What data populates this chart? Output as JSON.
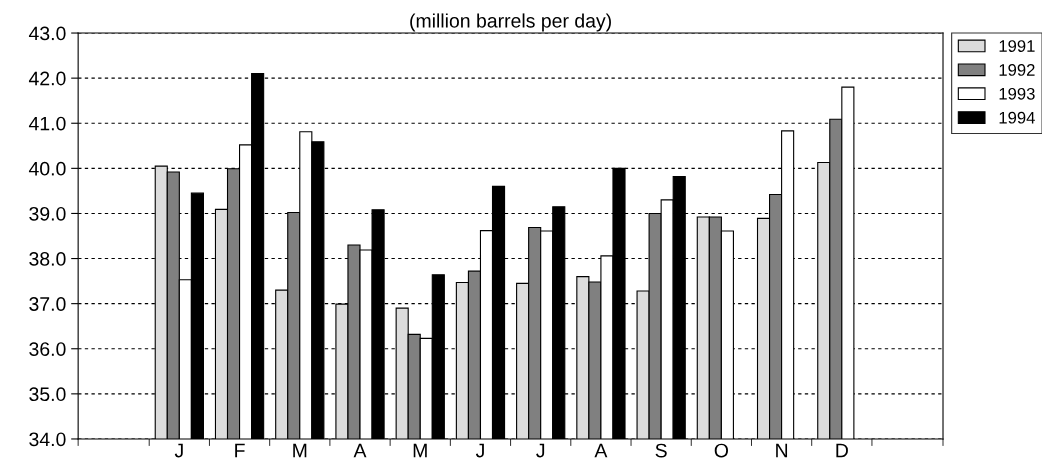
{
  "chart_data": {
    "type": "bar",
    "title": "(million barrels per day)",
    "categories": [
      "J",
      "F",
      "M",
      "A",
      "M",
      "J",
      "J",
      "A",
      "S",
      "O",
      "N",
      "D"
    ],
    "series": [
      {
        "name": "1991",
        "color": "#dcdcdc",
        "values": [
          40.05,
          39.09,
          37.3,
          36.99,
          36.9,
          37.47,
          37.45,
          37.6,
          37.28,
          38.92,
          38.89,
          40.13
        ]
      },
      {
        "name": "1992",
        "color": "#808080",
        "values": [
          39.92,
          39.99,
          39.02,
          38.3,
          36.32,
          37.72,
          38.69,
          37.48,
          39.0,
          38.92,
          39.42,
          41.09
        ]
      },
      {
        "name": "1993",
        "color": "#ffffff",
        "values": [
          37.53,
          40.52,
          40.81,
          38.19,
          36.23,
          38.62,
          38.61,
          38.06,
          39.3,
          38.61,
          40.83,
          41.8
        ]
      },
      {
        "name": "1994",
        "color": "#000000",
        "values": [
          39.45,
          42.1,
          40.59,
          39.08,
          37.64,
          39.6,
          39.15,
          40.0,
          39.82,
          null,
          null,
          null
        ]
      }
    ],
    "ylim": [
      34,
      43
    ],
    "yticks": [
      {
        "value": 34,
        "label": "34.0"
      },
      {
        "value": 35,
        "label": "35.0"
      },
      {
        "value": 36,
        "label": "36.0"
      },
      {
        "value": 37,
        "label": "37.0"
      },
      {
        "value": 38,
        "label": "38.0"
      },
      {
        "value": 39,
        "label": "39.0"
      },
      {
        "value": 40,
        "label": "40.0"
      },
      {
        "value": 41,
        "label": "41.0"
      },
      {
        "value": 42,
        "label": "42.0"
      },
      {
        "value": 43,
        "label": "43.0"
      }
    ],
    "grid": "y",
    "legend": "top right",
    "line_style": "dashed"
  }
}
